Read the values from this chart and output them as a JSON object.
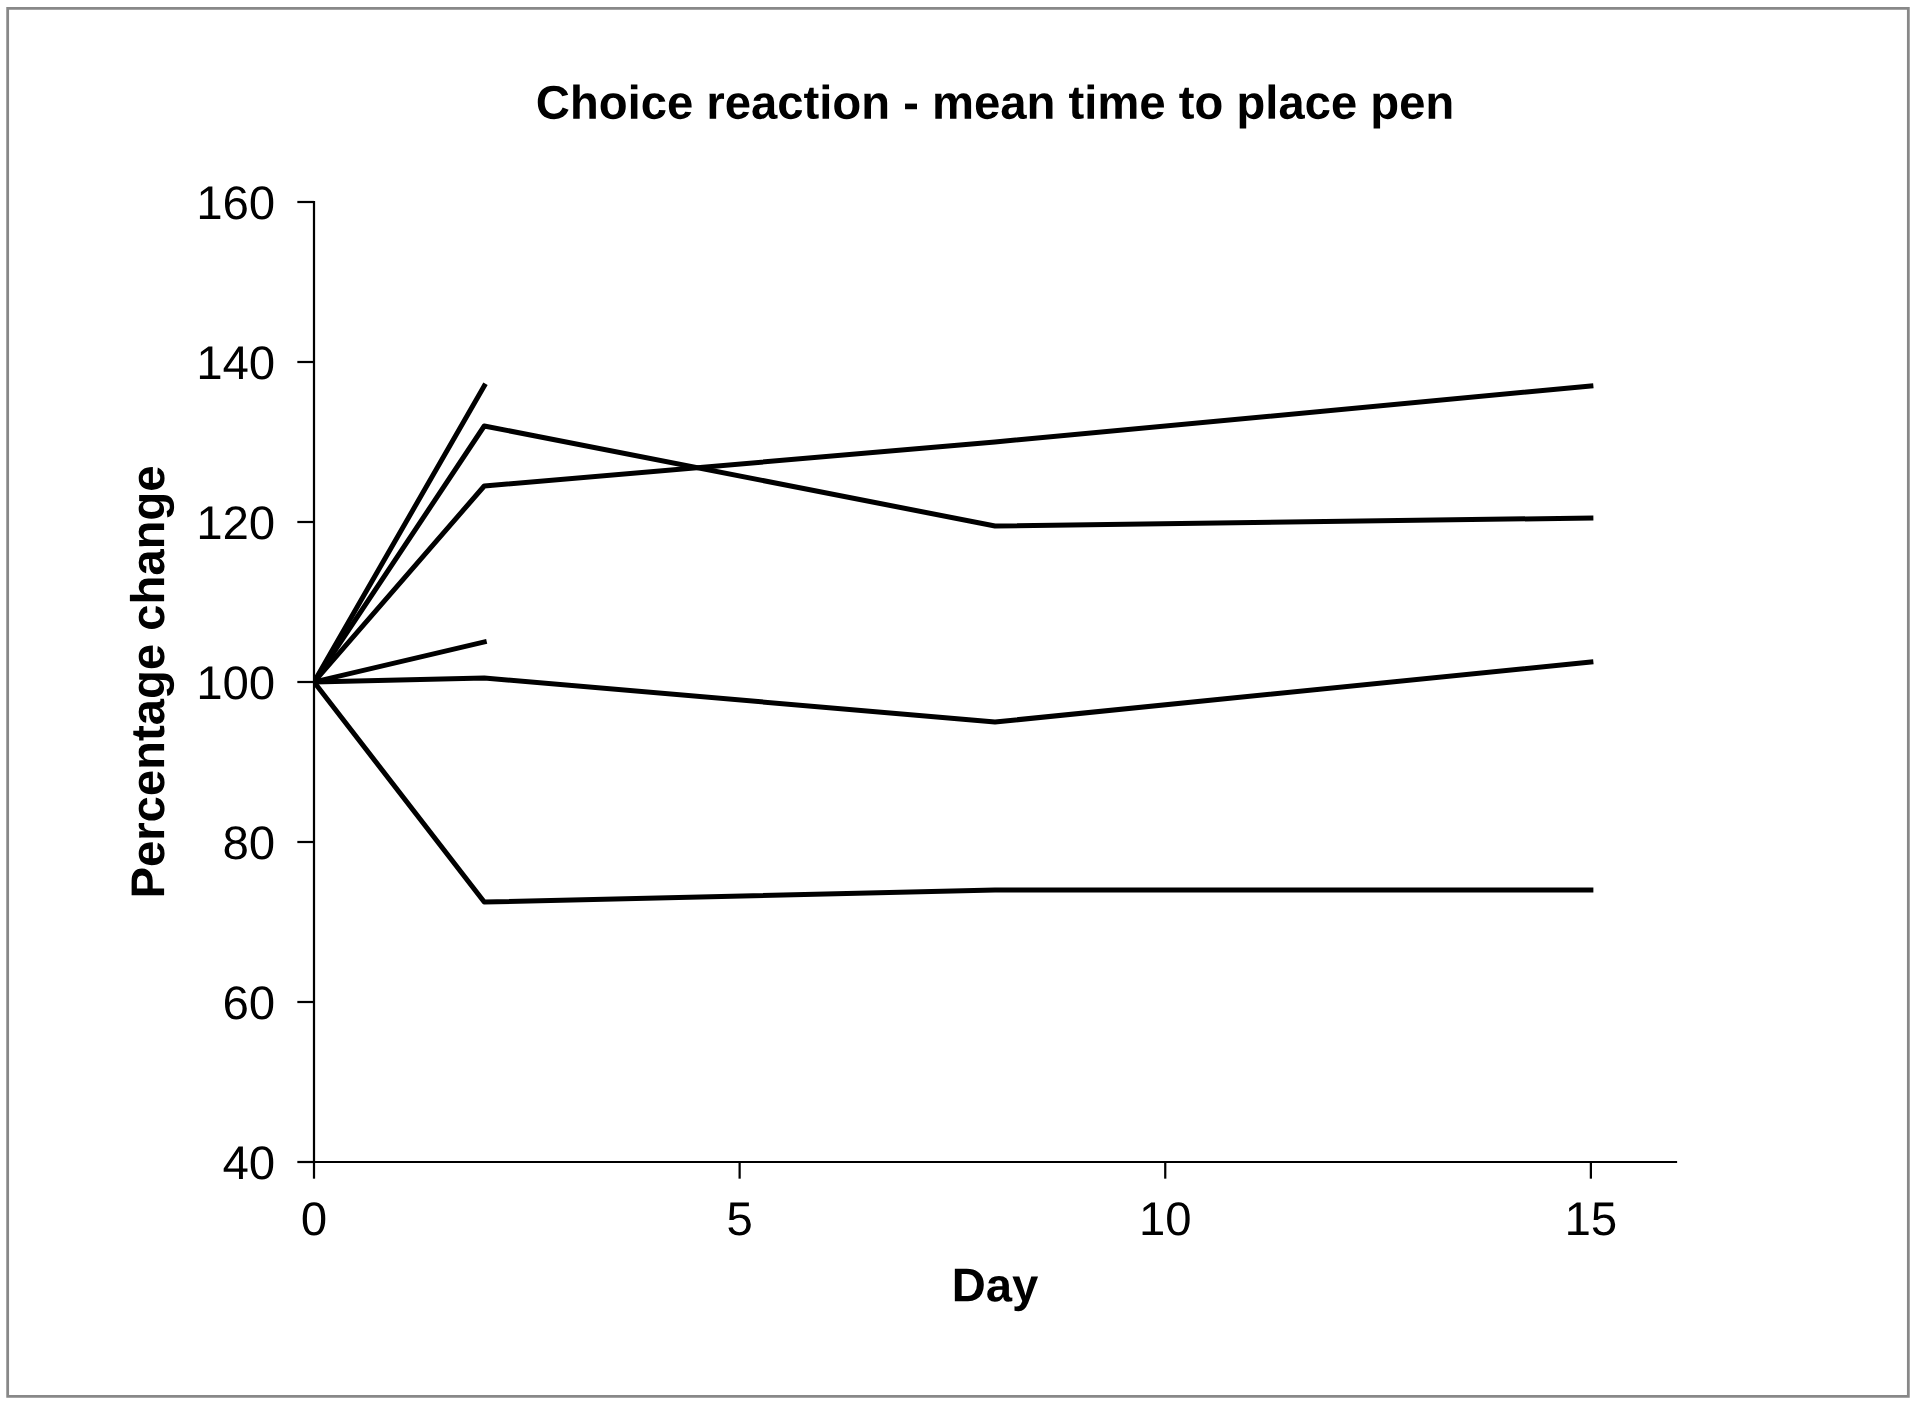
{
  "chart_data": {
    "type": "line",
    "title": "Choice reaction - mean time to place pen",
    "xlabel": "Day",
    "ylabel": "Percentage change",
    "x": [
      0,
      2,
      8,
      15
    ],
    "series": [
      {
        "color": "#000000",
        "values": [
          100,
          137,
          null,
          null
        ]
      },
      {
        "color": "#000000",
        "values": [
          100,
          132,
          119.5,
          120.5
        ]
      },
      {
        "color": "#000000",
        "values": [
          100,
          124.5,
          130,
          137
        ]
      },
      {
        "color": "#000000",
        "values": [
          100,
          105,
          null,
          null
        ]
      },
      {
        "color": "#000000",
        "values": [
          100,
          100.5,
          95,
          102.5
        ]
      },
      {
        "color": "#000000",
        "values": [
          100,
          72.5,
          74,
          74
        ]
      }
    ],
    "xlim": [
      0,
      16
    ],
    "ylim": [
      40,
      160
    ],
    "xticks": [
      0,
      5,
      10,
      15
    ],
    "yticks": [
      40,
      60,
      80,
      100,
      120,
      140,
      160
    ],
    "grid": false,
    "marker": "none",
    "line_style": "solid"
  }
}
